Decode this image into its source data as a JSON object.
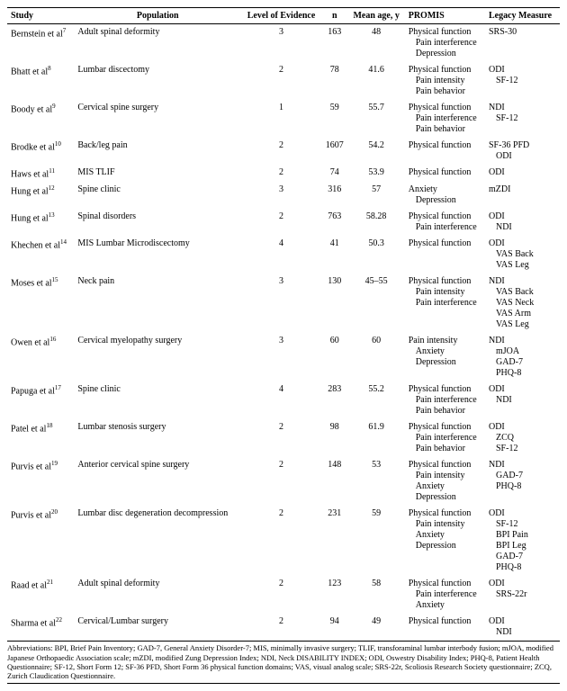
{
  "columns": [
    "Study",
    "Population",
    "Level of Evidence",
    "n",
    "Mean age, y",
    "PROMIS",
    "Legacy Measure"
  ],
  "rows": [
    {
      "study": "Bernstein et al",
      "ref": "7",
      "population": "Adult spinal deformity",
      "loe": "3",
      "n": "163",
      "age": "48",
      "promis": [
        "Physical function",
        "Pain interference",
        "Depression"
      ],
      "legacy": [
        "SRS-30"
      ]
    },
    {
      "study": "Bhatt et al",
      "ref": "8",
      "population": "Lumbar discectomy",
      "loe": "2",
      "n": "78",
      "age": "41.6",
      "promis": [
        "Physical function",
        "Pain intensity",
        "Pain behavior"
      ],
      "legacy": [
        "ODI",
        "SF-12"
      ]
    },
    {
      "study": "Boody et al",
      "ref": "9",
      "population": "Cervical spine surgery",
      "loe": "1",
      "n": "59",
      "age": "55.7",
      "promis": [
        "Physical function",
        "Pain interference",
        "Pain behavior"
      ],
      "legacy": [
        "NDI",
        "SF-12"
      ]
    },
    {
      "study": "Brodke et al",
      "ref": "10",
      "population": "Back/leg pain",
      "loe": "2",
      "n": "1607",
      "age": "54.2",
      "promis": [
        "Physical function"
      ],
      "legacy": [
        "SF-36 PFD",
        "ODI"
      ]
    },
    {
      "study": "Haws et al",
      "ref": "11",
      "population": "MIS TLIF",
      "loe": "2",
      "n": "74",
      "age": "53.9",
      "promis": [
        "Physical function"
      ],
      "legacy": [
        "ODI"
      ]
    },
    {
      "study": "Hung et al",
      "ref": "12",
      "population": "Spine clinic",
      "loe": "3",
      "n": "316",
      "age": "57",
      "promis": [
        "Anxiety",
        "Depression"
      ],
      "legacy": [
        "mZDI"
      ]
    },
    {
      "study": "Hung et al",
      "ref": "13",
      "population": "Spinal disorders",
      "loe": "2",
      "n": "763",
      "age": "58.28",
      "promis": [
        "Physical function",
        "Pain interference"
      ],
      "legacy": [
        "ODI",
        "NDI"
      ]
    },
    {
      "study": "Khechen et al",
      "ref": "14",
      "population": "MIS Lumbar Microdiscectomy",
      "loe": "4",
      "n": "41",
      "age": "50.3",
      "promis": [
        "Physical function"
      ],
      "legacy": [
        "ODI",
        "VAS Back",
        "VAS Leg"
      ]
    },
    {
      "study": "Moses et al",
      "ref": "15",
      "population": "Neck pain",
      "loe": "3",
      "n": "130",
      "age": "45–55",
      "promis": [
        "Physical function",
        "Pain intensity",
        "Pain interference"
      ],
      "legacy": [
        "NDI",
        "VAS Back",
        "VAS Neck",
        "VAS Arm",
        "VAS Leg"
      ]
    },
    {
      "study": "Owen et al",
      "ref": "16",
      "population": "Cervical myelopathy surgery",
      "loe": "3",
      "n": "60",
      "age": "60",
      "promis": [
        "Pain intensity",
        "Anxiety",
        "Depression"
      ],
      "legacy": [
        "NDI",
        "mJOA",
        "GAD-7",
        "PHQ-8"
      ]
    },
    {
      "study": "Papuga et al",
      "ref": "17",
      "population": "Spine clinic",
      "loe": "4",
      "n": "283",
      "age": "55.2",
      "promis": [
        "Physical function",
        "Pain interference",
        "Pain behavior"
      ],
      "legacy": [
        "ODI",
        "NDI"
      ]
    },
    {
      "study": "Patel et al",
      "ref": "18",
      "population": "Lumbar stenosis surgery",
      "loe": "2",
      "n": "98",
      "age": "61.9",
      "promis": [
        "Physical function",
        "Pain interference",
        "Pain behavior"
      ],
      "legacy": [
        "ODI",
        "ZCQ",
        "SF-12"
      ]
    },
    {
      "study": "Purvis et al",
      "ref": "19",
      "population": "Anterior cervical spine surgery",
      "loe": "2",
      "n": "148",
      "age": "53",
      "promis": [
        "Physical function",
        "Pain intensity",
        "Anxiety",
        "Depression"
      ],
      "legacy": [
        "NDI",
        "GAD-7",
        "PHQ-8"
      ]
    },
    {
      "study": "Purvis et al",
      "ref": "20",
      "population": "Lumbar disc degeneration decompression",
      "loe": "2",
      "n": "231",
      "age": "59",
      "promis": [
        "Physical function",
        "Pain intensity",
        "Anxiety",
        "Depression"
      ],
      "legacy": [
        "ODI",
        "SF-12",
        "BPI Pain",
        "BPI Leg",
        "GAD-7",
        "PHQ-8"
      ]
    },
    {
      "study": "Raad et al",
      "ref": "21",
      "population": "Adult spinal deformity",
      "loe": "2",
      "n": "123",
      "age": "58",
      "promis": [
        "Physical function",
        "Pain interference",
        "Anxiety"
      ],
      "legacy": [
        "ODI",
        "SRS-22r"
      ]
    },
    {
      "study": "Sharma et al",
      "ref": "22",
      "population": "Cervical/Lumbar surgery",
      "loe": "2",
      "n": "94",
      "age": "49",
      "promis": [
        "Physical function"
      ],
      "legacy": [
        "ODI",
        "NDI"
      ]
    }
  ],
  "abbrev": "Abbreviations: BPI, Brief Pain Inventory; GAD-7, General Anxiety Disorder-7; MIS, minimally invasive surgery; TLIF, transforaminal lumbar interbody fusion; mJOA, modified Japanese Orthopaedic Association scale; mZDI, modified Zung Depression Index; NDI, Neck DISABILITY INDEX; ODI, Oswestry Disability Index; PHQ-8, Patient Health Questionnaire; SF-12, Short Form 12; SF-36 PFD, Short Form 36 physical function domains; VAS, visual analog scale; SRS-22r, Scoliosis Research Society questionnaire; ZCQ, Zurich Claudication Questionnaire."
}
